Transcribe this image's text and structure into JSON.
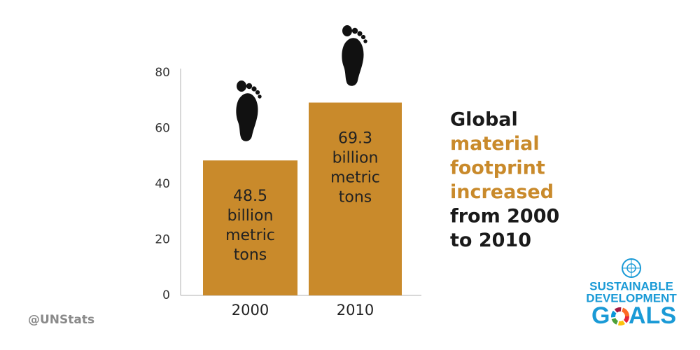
{
  "chart_data": {
    "type": "bar",
    "categories": [
      "2000",
      "2010"
    ],
    "values": [
      48.5,
      69.3
    ],
    "unit_label": "billion metric tons",
    "color": "#c98a2b",
    "ylim": [
      0,
      80
    ],
    "yticks": [
      0,
      20,
      40,
      60,
      80
    ],
    "grid": false,
    "headline": [
      {
        "text": "Global",
        "color": "#1a1a1a"
      },
      {
        "text": "material",
        "color": "#c98a2b"
      },
      {
        "text": "footprint",
        "color": "#c98a2b"
      },
      {
        "text": "increased",
        "color": "#c98a2b"
      },
      {
        "text": "from 2000",
        "color": "#1a1a1a"
      },
      {
        "text": "to 2010",
        "color": "#1a1a1a"
      }
    ],
    "source": "@UNStats",
    "logo": [
      "SUSTAINABLE",
      "DEVELOPMENT",
      "G",
      "ALS"
    ]
  }
}
